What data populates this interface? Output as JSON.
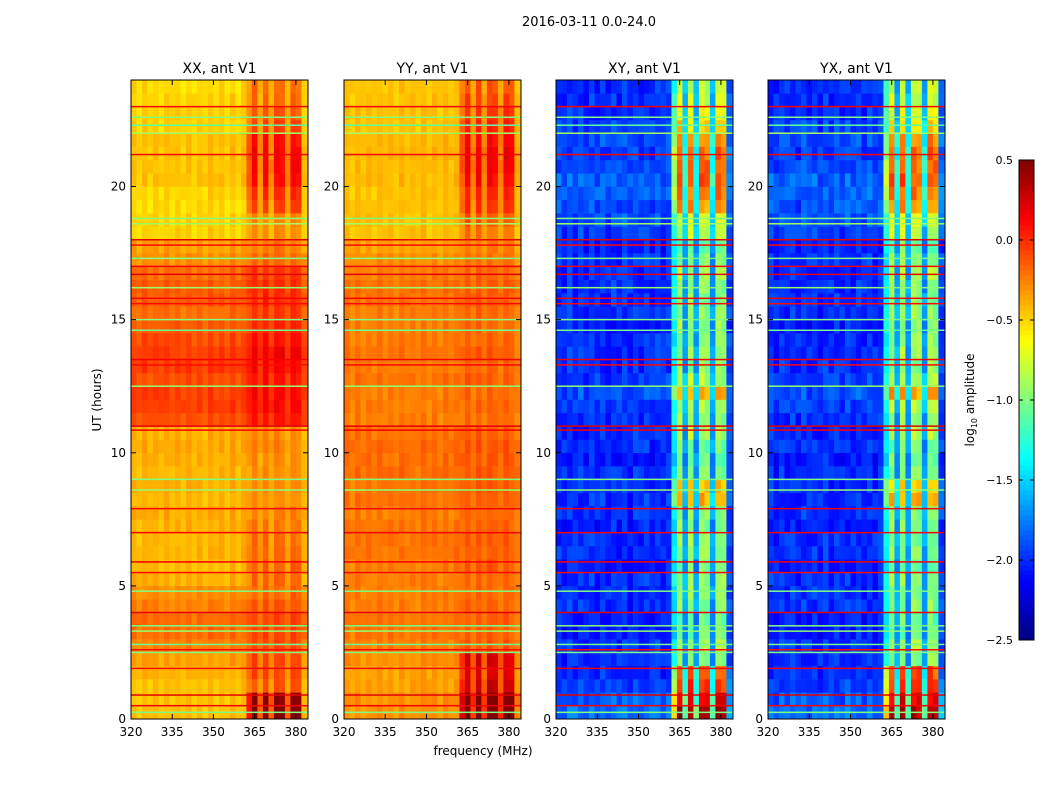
{
  "chart_data": {
    "type": "heatmap",
    "suptitle": "2016-03-11 0.0-24.0",
    "xlabel": "frequency (MHz)",
    "ylabel": "UT (hours)",
    "xlim": [
      320,
      384.4
    ],
    "ylim": [
      0,
      24
    ],
    "xticks": [
      "320",
      "335",
      "350",
      "365",
      "380"
    ],
    "xtick_values": [
      320,
      335,
      350,
      365,
      380
    ],
    "yticks": [
      "0",
      "5",
      "10",
      "15",
      "20"
    ],
    "ytick_values": [
      0,
      5,
      10,
      15,
      20
    ],
    "colorbar": {
      "label": "log10 amplitude",
      "label_main": "log",
      "label_sub": "10",
      "label_rest": " amplitude",
      "range": [
        -2.5,
        0.5
      ],
      "ticks": [
        "0.5",
        "0.0",
        "−0.5",
        "−1.0",
        "−1.5",
        "−2.0",
        "−2.5"
      ],
      "tick_values": [
        0.5,
        0.0,
        -0.5,
        -1.0,
        -1.5,
        -2.0,
        -2.5
      ],
      "colormap": "jet"
    },
    "time_bin_hours": 0.5,
    "freq_bin_mhz": 2,
    "panels": [
      {
        "title": "XX, ant V1",
        "time_profile": [
          -0.45,
          -0.45,
          -0.45,
          -0.4,
          -0.35,
          -0.25,
          -0.2,
          -0.2,
          -0.25,
          -0.3,
          -0.4,
          -0.42,
          -0.4,
          -0.42,
          -0.4,
          -0.38,
          -0.42,
          -0.4,
          -0.42,
          -0.4,
          -0.38,
          -0.4,
          -0.1,
          -0.05,
          -0.05,
          -0.1,
          -0.05,
          -0.05,
          -0.1,
          -0.15,
          -0.2,
          -0.15,
          -0.15,
          -0.2,
          -0.3,
          -0.35,
          -0.5,
          -0.5,
          -0.52,
          -0.5,
          -0.45,
          -0.45,
          -0.45,
          -0.45,
          -0.5,
          -0.5,
          -0.5,
          -0.52
        ],
        "rfi_boost": [
          0.9,
          0.9,
          0.3,
          0.3,
          0.25,
          0.15,
          0.1,
          0.1,
          0.1,
          0.1,
          0.2,
          0.25,
          0.2,
          0.2,
          0.15,
          0.1,
          0.1,
          0.1,
          0.1,
          0.1,
          0.1,
          0.1,
          0.15,
          0.15,
          0.15,
          0.15,
          0.15,
          0.2,
          0.15,
          0.15,
          0.15,
          0.15,
          0.15,
          0.15,
          0.1,
          0.1,
          0.2,
          0.2,
          0.45,
          0.5,
          0.5,
          0.55,
          0.55,
          0.5,
          0.4,
          0.35,
          0.3,
          0.3
        ],
        "noise": 0.04
      },
      {
        "title": "YY, ant V1",
        "time_profile": [
          -0.3,
          -0.3,
          -0.35,
          -0.35,
          -0.3,
          -0.25,
          -0.22,
          -0.22,
          -0.25,
          -0.25,
          -0.25,
          -0.25,
          -0.22,
          -0.22,
          -0.22,
          -0.25,
          -0.22,
          -0.22,
          -0.2,
          -0.2,
          -0.2,
          -0.22,
          -0.25,
          -0.25,
          -0.25,
          -0.22,
          -0.25,
          -0.22,
          -0.25,
          -0.25,
          -0.25,
          -0.22,
          -0.22,
          -0.25,
          -0.3,
          -0.35,
          -0.45,
          -0.45,
          -0.45,
          -0.45,
          -0.42,
          -0.42,
          -0.42,
          -0.42,
          -0.45,
          -0.45,
          -0.45,
          -0.45
        ],
        "rfi_boost": [
          0.85,
          0.85,
          0.6,
          0.55,
          0.5,
          0.1,
          0.05,
          0.05,
          0.05,
          0.05,
          0.05,
          0.1,
          0.05,
          0.05,
          0.05,
          0.05,
          0.05,
          0.05,
          0.05,
          0.05,
          0.05,
          0.05,
          0.05,
          0.05,
          0.05,
          0.05,
          0.05,
          0.05,
          0.05,
          0.05,
          0.05,
          0.05,
          0.05,
          0.05,
          0.05,
          0.1,
          0.2,
          0.3,
          0.4,
          0.45,
          0.5,
          0.55,
          0.55,
          0.5,
          0.45,
          0.4,
          0.35,
          0.3
        ],
        "noise": 0.04
      },
      {
        "title": "XY, ant V1",
        "time_profile": [
          -1.8,
          -1.85,
          -1.95,
          -2.0,
          -2.0,
          -2.0,
          -2.05,
          -2.05,
          -2.0,
          -2.0,
          -2.0,
          -2.05,
          -2.0,
          -2.0,
          -2.05,
          -2.0,
          -2.0,
          -2.0,
          -2.0,
          -2.05,
          -2.0,
          -2.0,
          -2.0,
          -1.95,
          -1.9,
          -1.95,
          -2.0,
          -2.0,
          -2.0,
          -2.05,
          -2.0,
          -2.0,
          -2.0,
          -2.0,
          -2.0,
          -2.05,
          -1.95,
          -1.9,
          -1.9,
          -1.85,
          -1.85,
          -1.9,
          -1.95,
          -1.9,
          -1.95,
          -2.0,
          -2.0,
          -2.0
        ],
        "rfi_boost": [
          2.1,
          2.0,
          1.9,
          1.85,
          1.0,
          1.05,
          0.95,
          0.95,
          1.0,
          1.0,
          1.05,
          0.95,
          1.0,
          1.0,
          1.05,
          1.0,
          1.55,
          1.5,
          0.95,
          0.95,
          0.9,
          1.1,
          1.05,
          1.05,
          1.5,
          1.05,
          1.0,
          1.05,
          1.0,
          1.1,
          1.05,
          1.0,
          1.0,
          1.1,
          1.0,
          0.95,
          1.1,
          1.15,
          1.55,
          1.6,
          1.7,
          1.7,
          1.75,
          1.6,
          1.4,
          1.3,
          1.2,
          1.15
        ],
        "noise": 0.12
      },
      {
        "title": "YX, ant V1",
        "time_profile": [
          -1.8,
          -1.85,
          -1.95,
          -2.0,
          -2.0,
          -2.0,
          -2.05,
          -2.05,
          -2.0,
          -2.0,
          -2.0,
          -2.05,
          -2.0,
          -2.0,
          -2.05,
          -2.0,
          -2.0,
          -2.0,
          -2.0,
          -2.05,
          -2.0,
          -2.0,
          -2.0,
          -1.95,
          -1.9,
          -1.95,
          -2.0,
          -2.0,
          -2.0,
          -2.05,
          -2.0,
          -2.0,
          -2.0,
          -2.0,
          -2.0,
          -2.05,
          -1.95,
          -1.9,
          -1.9,
          -1.85,
          -1.85,
          -1.9,
          -1.95,
          -1.9,
          -1.95,
          -2.0,
          -2.0,
          -2.0
        ],
        "rfi_boost": [
          2.1,
          2.0,
          1.9,
          1.85,
          1.0,
          1.05,
          0.95,
          0.95,
          1.0,
          1.0,
          1.05,
          0.95,
          1.0,
          1.0,
          1.05,
          1.0,
          1.55,
          1.5,
          0.95,
          0.95,
          0.9,
          1.1,
          1.05,
          1.05,
          1.5,
          1.05,
          1.0,
          1.05,
          1.0,
          1.1,
          1.05,
          1.0,
          1.0,
          1.1,
          1.0,
          0.95,
          1.1,
          1.15,
          1.55,
          1.6,
          1.7,
          1.7,
          1.75,
          1.6,
          1.4,
          1.3,
          1.2,
          1.15
        ],
        "noise": 0.12
      }
    ],
    "freq_profile": [
      0.02,
      -0.03,
      0.03,
      -0.02,
      0.02,
      -0.03,
      0.03,
      -0.02,
      0.02,
      -0.03,
      0.03,
      -0.02,
      0.02,
      -0.03,
      0.04,
      -0.02,
      0.03,
      -0.03,
      0.04,
      -0.02,
      0.03,
      0.0,
      0.05,
      0.0,
      0.05,
      0.0,
      0.05,
      0.02,
      0.0,
      0.05,
      0.0,
      -0.02
    ],
    "rfi_weight": [
      0,
      0,
      0,
      0,
      0,
      0,
      0,
      0,
      0,
      0,
      0,
      0,
      0,
      0,
      0,
      0,
      0,
      0,
      0,
      0,
      0,
      0.6,
      1,
      0.35,
      1,
      0.35,
      1,
      1,
      0.35,
      1,
      1,
      0.1
    ],
    "flag_lines": [
      {
        "t": 23.0,
        "v": 0.15
      },
      {
        "t": 22.6,
        "v": -1.0
      },
      {
        "t": 22.3,
        "v": -1.1
      },
      {
        "t": 22.0,
        "v": -0.9
      },
      {
        "t": 21.2,
        "v": 0.15
      },
      {
        "t": 18.8,
        "v": -1.0
      },
      {
        "t": 18.6,
        "v": -0.9
      },
      {
        "t": 18.0,
        "v": 0.2
      },
      {
        "t": 17.8,
        "v": 0.1
      },
      {
        "t": 17.3,
        "v": -1.0
      },
      {
        "t": 17.0,
        "v": 0.15
      },
      {
        "t": 16.7,
        "v": 0.2
      },
      {
        "t": 16.2,
        "v": -0.95
      },
      {
        "t": 15.8,
        "v": 0.15
      },
      {
        "t": 15.6,
        "v": 0.1
      },
      {
        "t": 15.0,
        "v": -1.0
      },
      {
        "t": 14.6,
        "v": -1.05
      },
      {
        "t": 13.5,
        "v": 0.15
      },
      {
        "t": 13.3,
        "v": 0.1
      },
      {
        "t": 12.5,
        "v": -0.95
      },
      {
        "t": 11.0,
        "v": 0.2
      },
      {
        "t": 10.85,
        "v": 0.15
      },
      {
        "t": 9.0,
        "v": -1.0
      },
      {
        "t": 8.6,
        "v": -0.95
      },
      {
        "t": 7.9,
        "v": 0.15
      },
      {
        "t": 7.0,
        "v": 0.15
      },
      {
        "t": 5.9,
        "v": 0.15
      },
      {
        "t": 5.5,
        "v": 0.1
      },
      {
        "t": 4.8,
        "v": -1.0
      },
      {
        "t": 4.0,
        "v": 0.2
      },
      {
        "t": 3.5,
        "v": -1.0
      },
      {
        "t": 3.3,
        "v": -0.95
      },
      {
        "t": 2.8,
        "v": -1.05
      },
      {
        "t": 2.6,
        "v": 0.1
      },
      {
        "t": 2.5,
        "v": -1.0
      },
      {
        "t": 1.9,
        "v": 0.15
      },
      {
        "t": 0.9,
        "v": 0.2
      },
      {
        "t": 0.5,
        "v": 0.15
      },
      {
        "t": 0.25,
        "v": -1.0
      }
    ]
  }
}
